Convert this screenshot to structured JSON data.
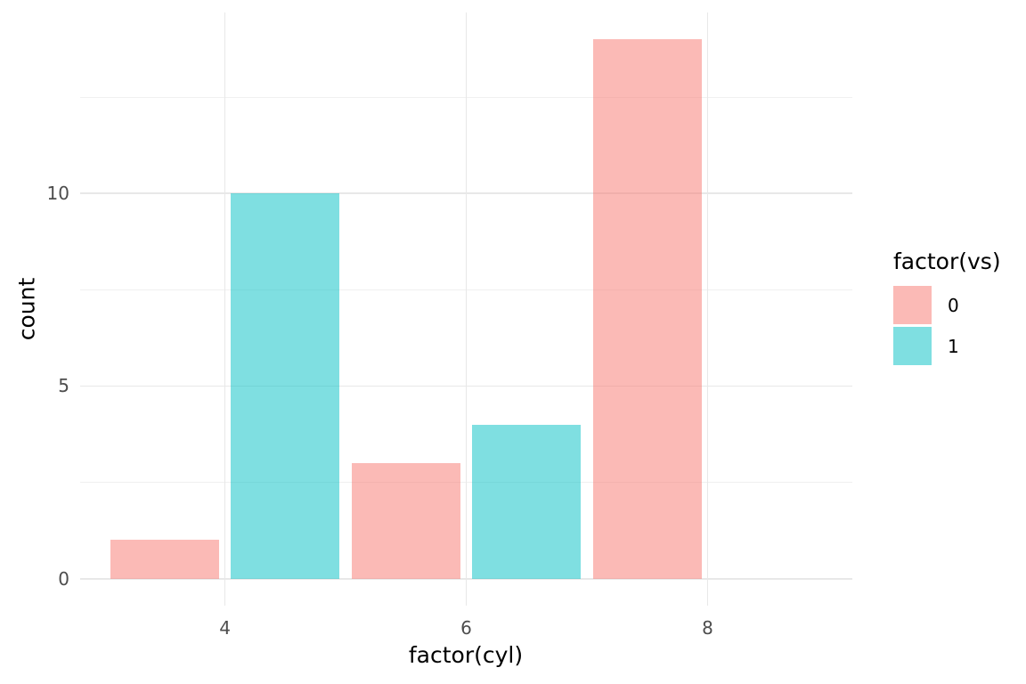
{
  "chart_data": {
    "type": "bar",
    "title": "",
    "xlabel": "factor(cyl)",
    "ylabel": "count",
    "categories": [
      "4",
      "6",
      "8"
    ],
    "series": [
      {
        "name": "0",
        "color": "#F8766D",
        "values": [
          1,
          3,
          14
        ]
      },
      {
        "name": "1",
        "color": "#00BFC4",
        "values": [
          10,
          4,
          0
        ]
      }
    ],
    "fill_alpha": 0.5,
    "legend_title": "factor(vs)",
    "legend_position": "right",
    "y_major_ticks": [
      0,
      5,
      10
    ],
    "y_minor_ticks": [
      2.5,
      7.5,
      12.5
    ],
    "ylim": [
      -0.7,
      14.7
    ],
    "grid": true,
    "bar_width_units": 0.45,
    "dodge_offset_units": 0.25
  },
  "colors": {
    "background": "#ffffff",
    "major_grid": "#e8e8e8",
    "minor_grid": "#f0f0f0",
    "tick_text": "#4d4d4d",
    "title_text": "#000000"
  }
}
